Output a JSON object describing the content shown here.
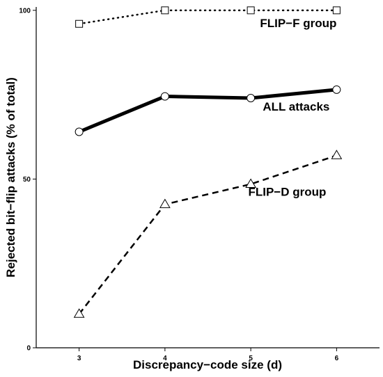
{
  "chart_data": {
    "type": "line",
    "xlabel": "Discrepancy−code size (d)",
    "ylabel": "Rejected bit−flip attacks (% of total)",
    "x": [
      3,
      4,
      5,
      6
    ],
    "xlim": [
      2.5,
      6.5
    ],
    "ylim": [
      0,
      101
    ],
    "xticks": [
      "3",
      "4",
      "5",
      "6"
    ],
    "yticks": [
      "0",
      "50",
      "100"
    ],
    "grid": false,
    "series": [
      {
        "name": "FLIP−F group",
        "values": [
          96,
          100,
          100,
          100
        ],
        "line": "dotted",
        "marker": "square",
        "color": "#000000"
      },
      {
        "name": "ALL attacks",
        "values": [
          64,
          74.5,
          74,
          76.5
        ],
        "line": "solid-thick",
        "marker": "circle",
        "color": "#000000"
      },
      {
        "name": "FLIP−D group",
        "values": [
          10,
          42.5,
          48.5,
          57
        ],
        "line": "dashed",
        "marker": "triangle",
        "color": "#000000"
      }
    ]
  }
}
